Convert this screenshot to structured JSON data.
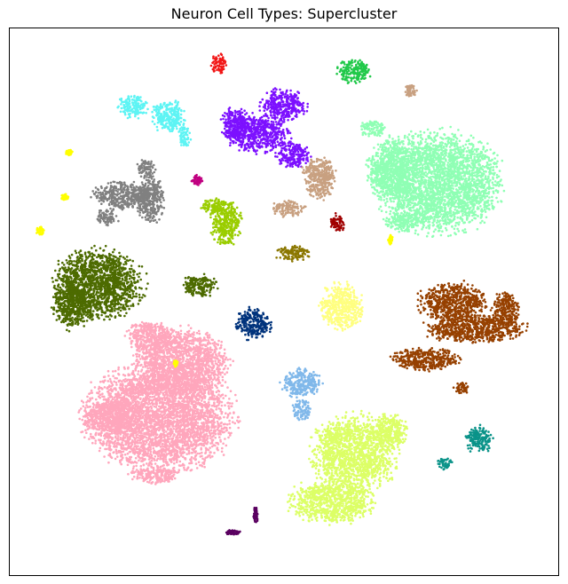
{
  "chart_data": {
    "type": "scatter",
    "title": "Neuron Cell Types: Supercluster",
    "xlabel": "",
    "ylabel": "",
    "grid": false,
    "ticks": false,
    "legend": "none",
    "series": [
      {
        "color": "#ffa6bc",
        "blobs": [
          [
            180,
            470,
            95,
            70
          ],
          [
            205,
            410,
            60,
            45
          ],
          [
            125,
            470,
            40,
            22
          ],
          [
            170,
            380,
            32,
            22
          ],
          [
            175,
            535,
            30,
            12
          ]
        ]
      },
      {
        "color": "#dcff66",
        "blobs": [
          [
            400,
            510,
            55,
            50
          ],
          [
            375,
            565,
            55,
            28
          ],
          [
            440,
            485,
            22,
            22
          ]
        ]
      },
      {
        "color": "#8fffb4",
        "blobs": [
          [
            495,
            205,
            80,
            65
          ],
          [
            440,
            190,
            30,
            40
          ],
          [
            455,
            250,
            25,
            12
          ],
          [
            420,
            145,
            18,
            10
          ]
        ]
      },
      {
        "color": "#964000",
        "blobs": [
          [
            510,
            340,
            45,
            25
          ],
          [
            535,
            370,
            65,
            18
          ],
          [
            480,
            405,
            45,
            15
          ],
          [
            570,
            350,
            18,
            25
          ],
          [
            520,
            437,
            10,
            8
          ]
        ]
      },
      {
        "color": "#7c10ff",
        "blobs": [
          [
            290,
            150,
            40,
            25
          ],
          [
            320,
            118,
            30,
            20
          ],
          [
            330,
            175,
            22,
            18
          ],
          [
            265,
            140,
            18,
            22
          ]
        ]
      },
      {
        "color": "#4d6b00",
        "blobs": [
          [
            110,
            320,
            58,
            45
          ],
          [
            82,
            345,
            25,
            30
          ],
          [
            225,
            322,
            22,
            15
          ]
        ]
      },
      {
        "color": "#808080",
        "blobs": [
          [
            140,
            220,
            40,
            18
          ],
          [
            170,
            225,
            18,
            30
          ],
          [
            165,
            190,
            12,
            12
          ],
          [
            120,
            245,
            15,
            10
          ]
        ]
      },
      {
        "color": "#5ef4f4",
        "blobs": [
          [
            150,
            120,
            20,
            15
          ],
          [
            190,
            130,
            22,
            22
          ],
          [
            208,
            155,
            8,
            15
          ]
        ]
      },
      {
        "color": "#ffff80",
        "blobs": [
          [
            385,
            345,
            28,
            30
          ]
        ]
      },
      {
        "color": "#80b8ea",
        "blobs": [
          [
            340,
            432,
            25,
            18
          ],
          [
            340,
            462,
            12,
            14
          ]
        ]
      },
      {
        "color": "#00337c",
        "blobs": [
          [
            285,
            365,
            22,
            20
          ]
        ]
      },
      {
        "color": "#9acd00",
        "blobs": [
          [
            255,
            250,
            20,
            30
          ],
          [
            240,
            232,
            15,
            10
          ]
        ]
      },
      {
        "color": "#c8a080",
        "blobs": [
          [
            360,
            200,
            22,
            28
          ],
          [
            325,
            235,
            22,
            10
          ],
          [
            462,
            102,
            8,
            8
          ]
        ]
      },
      {
        "color": "#21c94a",
        "blobs": [
          [
            398,
            80,
            22,
            15
          ]
        ]
      },
      {
        "color": "#0a9389",
        "blobs": [
          [
            540,
            495,
            18,
            18
          ],
          [
            500,
            522,
            10,
            8
          ]
        ]
      },
      {
        "color": "#f21717",
        "blobs": [
          [
            247,
            72,
            11,
            13
          ]
        ]
      },
      {
        "color": "#8b7700",
        "blobs": [
          [
            330,
            285,
            22,
            10
          ]
        ]
      },
      {
        "color": "#a00000",
        "blobs": [
          [
            380,
            252,
            10,
            12
          ]
        ]
      },
      {
        "color": "#c00080",
        "blobs": [
          [
            222,
            203,
            7,
            7
          ]
        ]
      },
      {
        "color": "#ffff00",
        "blobs": [
          [
            45,
            260,
            5,
            7
          ],
          [
            78,
            172,
            4,
            4
          ],
          [
            73,
            222,
            5,
            4
          ],
          [
            440,
            270,
            3,
            6
          ],
          [
            198,
            410,
            3,
            4
          ]
        ]
      },
      {
        "color": "#5a0060",
        "blobs": [
          [
            288,
            580,
            3,
            10
          ],
          [
            262,
            600,
            10,
            3
          ]
        ]
      }
    ]
  }
}
